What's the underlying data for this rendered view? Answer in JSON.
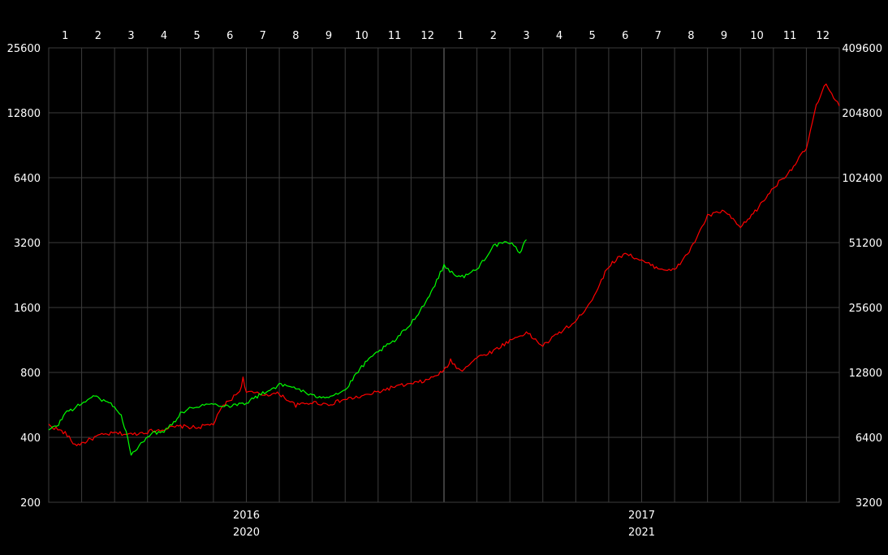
{
  "chart_data": {
    "type": "line",
    "title": "",
    "xlabel": "",
    "grid": true,
    "month_labels": [
      "1",
      "2",
      "3",
      "4",
      "5",
      "6",
      "7",
      "8",
      "9",
      "10",
      "11",
      "12",
      "1",
      "2",
      "3",
      "4",
      "5",
      "6",
      "7",
      "8",
      "9",
      "10",
      "11",
      "12"
    ],
    "year_labels": {
      "top_row": [
        "2016",
        "2017"
      ],
      "bottom_row": [
        "2020",
        "2021"
      ]
    },
    "left_axis": {
      "scale": "log2",
      "ticks": [
        200,
        400,
        800,
        1600,
        3200,
        6400,
        12800,
        25600
      ],
      "tick_labels": [
        "200",
        "400",
        "800",
        "1600",
        "3200",
        "6400",
        "12800",
        "25600"
      ],
      "ylim": [
        200,
        25600
      ]
    },
    "right_axis": {
      "scale": "log2",
      "ticks": [
        3200,
        6400,
        12800,
        25600,
        51200,
        102400,
        204800,
        409600
      ],
      "tick_labels": [
        "3200",
        "6400",
        "12800",
        "25600",
        "51200",
        "102400",
        "204800",
        "409600"
      ],
      "ylim": [
        3200,
        409600
      ]
    },
    "x_range_months": [
      0,
      24
    ],
    "series": [
      {
        "color": "#ff0000",
        "axis": "right",
        "x_months": [
          0,
          0.5,
          0.8,
          1.0,
          1.5,
          2.0,
          2.5,
          3.0,
          3.5,
          4.0,
          4.5,
          5.0,
          5.3,
          5.5,
          5.8,
          5.9,
          6.0,
          6.5,
          7.0,
          7.5,
          8.0,
          8.5,
          9.0,
          9.5,
          10.0,
          10.5,
          11.0,
          11.5,
          12.0,
          12.2,
          12.5,
          13.0,
          13.5,
          14.0,
          14.5,
          15.0,
          15.5,
          16.0,
          16.5,
          17.0,
          17.5,
          18.0,
          18.5,
          19.0,
          19.5,
          20.0,
          20.5,
          21.0,
          21.5,
          22.0,
          22.5,
          23.0,
          23.3,
          23.6,
          24.0
        ],
        "y": [
          7300,
          6700,
          5900,
          6000,
          6500,
          6700,
          6600,
          6800,
          7000,
          7200,
          7100,
          7400,
          9000,
          9500,
          10500,
          12000,
          10400,
          10100,
          10200,
          9000,
          9300,
          9100,
          9600,
          9900,
          10400,
          11000,
          11300,
          11800,
          13000,
          14500,
          13000,
          15000,
          16100,
          18000,
          19600,
          17000,
          19600,
          22000,
          28000,
          40000,
          46000,
          42000,
          39000,
          38000,
          48000,
          68000,
          72000,
          60000,
          73000,
          92000,
          110000,
          140000,
          220000,
          280000,
          220000
        ]
      },
      {
        "color": "#00ff00",
        "axis": "left",
        "x_months": [
          0,
          0.3,
          0.5,
          1.0,
          1.3,
          1.5,
          2.0,
          2.2,
          2.4,
          2.5,
          2.8,
          3.0,
          3.5,
          3.8,
          4.0,
          4.5,
          5.0,
          5.5,
          6.0,
          6.5,
          7.0,
          7.5,
          8.0,
          8.5,
          9.0,
          9.5,
          10.0,
          10.5,
          11.0,
          11.5,
          12.0,
          12.3,
          12.5,
          13.0,
          13.5,
          14.0,
          14.3,
          14.5
        ],
        "y": [
          430,
          460,
          520,
          570,
          620,
          610,
          560,
          500,
          400,
          330,
          370,
          410,
          430,
          470,
          520,
          560,
          570,
          560,
          580,
          640,
          700,
          680,
          620,
          620,
          660,
          850,
          1000,
          1120,
          1350,
          1750,
          2500,
          2300,
          2200,
          2400,
          3100,
          3200,
          2900,
          3300
        ]
      }
    ]
  }
}
